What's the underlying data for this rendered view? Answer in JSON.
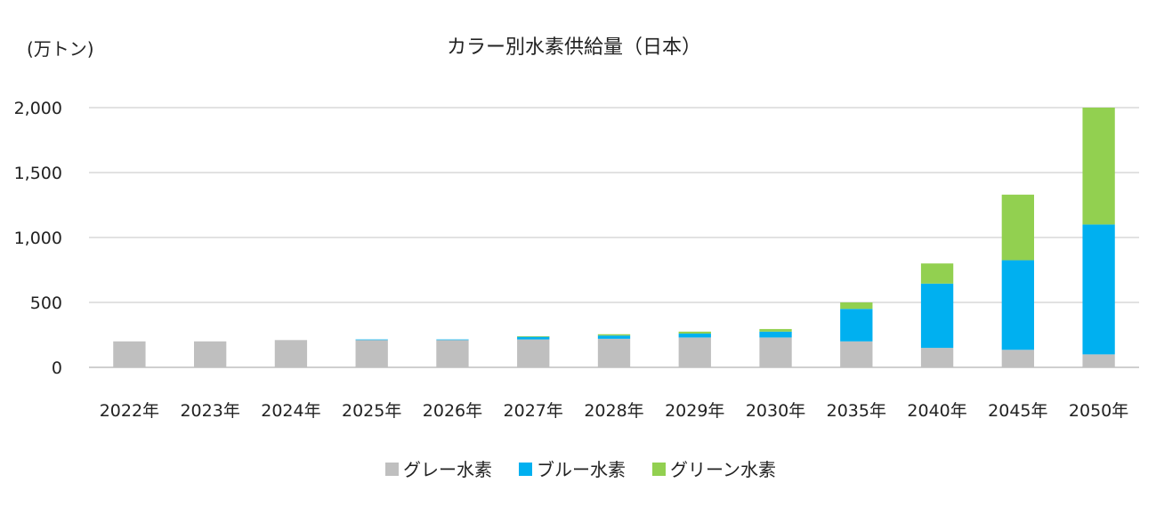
{
  "chart_data": {
    "type": "bar",
    "stacked": true,
    "title": "カラー別水素供給量（日本）",
    "unit_label": "(万トン)",
    "categories": [
      "2022年",
      "2023年",
      "2024年",
      "2025年",
      "2026年",
      "2027年",
      "2028年",
      "2029年",
      "2030年",
      "2035年",
      "2040年",
      "2045年",
      "2050年"
    ],
    "series": [
      {
        "name": "グレー水素",
        "color": "#BFBFBF",
        "values": [
          200,
          200,
          210,
          210,
          210,
          215,
          220,
          230,
          230,
          200,
          150,
          135,
          100
        ]
      },
      {
        "name": "ブルー水素",
        "color": "#00B0F0",
        "values": [
          0,
          0,
          0,
          5,
          5,
          20,
          25,
          30,
          45,
          250,
          495,
          690,
          1000
        ]
      },
      {
        "name": "グリーン水素",
        "color": "#92D050",
        "values": [
          0,
          0,
          0,
          0,
          0,
          5,
          10,
          15,
          20,
          50,
          155,
          505,
          900
        ]
      }
    ],
    "ylim": [
      0,
      2000
    ],
    "yticks": [
      0,
      500,
      1000,
      1500,
      2000
    ],
    "ytick_labels": [
      "0",
      "500",
      "1,000",
      "1,500",
      "2,000"
    ],
    "grid": true,
    "legend_position": "bottom"
  }
}
